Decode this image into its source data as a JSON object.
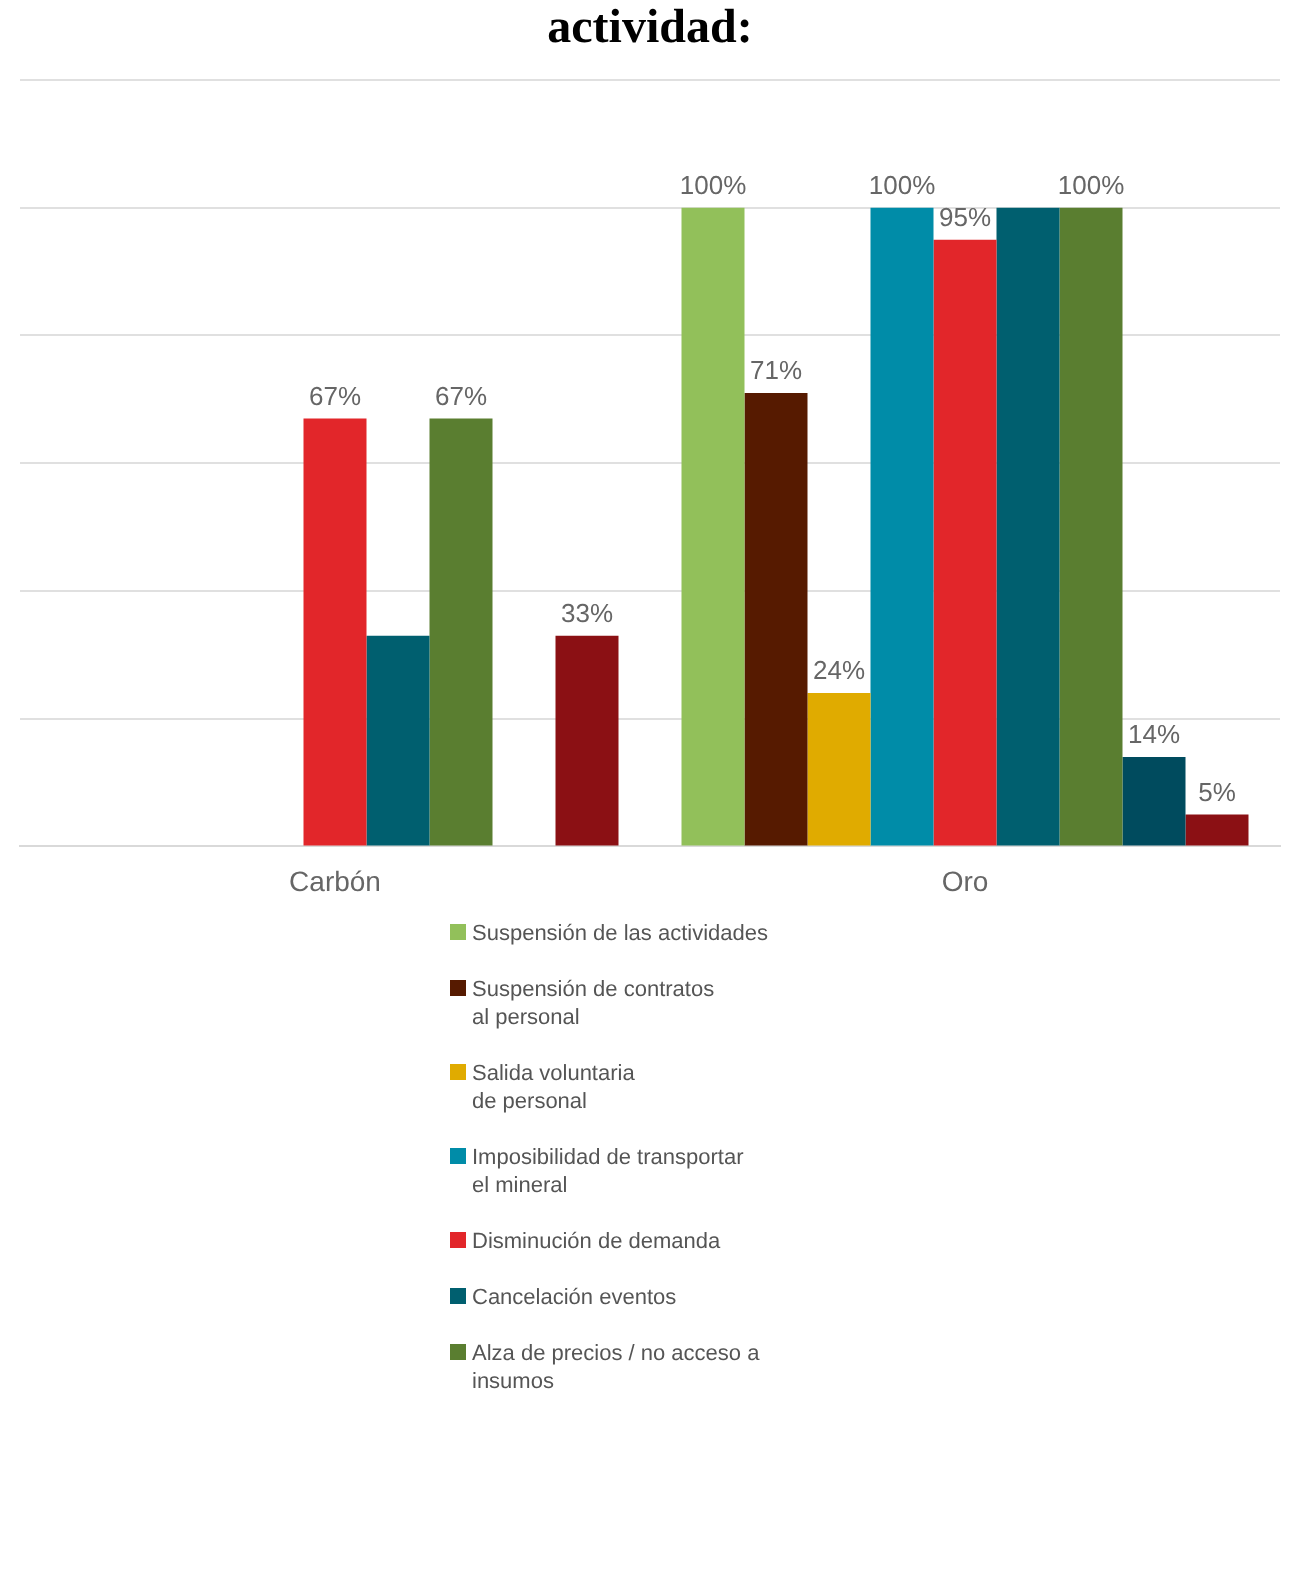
{
  "chart_data": {
    "type": "bar",
    "title": "actividad:",
    "categories": [
      "Carbón",
      "Oro"
    ],
    "series": [
      {
        "name": "Suspensión de las actividades",
        "color": "#92c05a",
        "values": [
          null,
          100
        ],
        "value_labels": [
          null,
          "100%"
        ]
      },
      {
        "name": "Suspensión de contratos\nal personal",
        "color": "#561a00",
        "values": [
          null,
          71
        ],
        "value_labels": [
          null,
          "71%"
        ]
      },
      {
        "name": "Salida voluntaria\nde personal",
        "color": "#e0ab00",
        "values": [
          null,
          24
        ],
        "value_labels": [
          null,
          "24%"
        ]
      },
      {
        "name": "Imposibilidad de transportar\nel mineral",
        "color": "#008ca8",
        "values": [
          null,
          100
        ],
        "value_labels": [
          null,
          "100%"
        ]
      },
      {
        "name": "Disminución de demanda",
        "color": "#e2262a",
        "values": [
          67,
          95
        ],
        "value_labels": [
          "67%",
          "95%"
        ]
      },
      {
        "name": "Cancelación eventos",
        "color": "#005f6f",
        "values": [
          33,
          100
        ],
        "value_labels": [
          null,
          null
        ]
      },
      {
        "name": "Alza de precios / no acceso a\ninsumos",
        "color": "#5a7e30",
        "values": [
          67,
          100
        ],
        "value_labels": [
          "67%",
          "100%"
        ]
      },
      {
        "color": "#004b5e",
        "values": [
          null,
          14
        ],
        "value_labels": [
          null,
          "14%"
        ]
      },
      {
        "color": "#8b1014",
        "values": [
          33,
          5
        ],
        "value_labels": [
          "33%",
          "5%"
        ]
      }
    ],
    "ylim": [
      0,
      120
    ],
    "yticks": [
      {
        "value": 0,
        "label": null
      },
      {
        "value": 20,
        "label": null
      },
      {
        "value": 40,
        "label": null
      },
      {
        "value": 60,
        "label": null
      },
      {
        "value": 80,
        "label": null
      },
      {
        "value": 100,
        "label": null
      },
      {
        "value": 120,
        "label": null
      }
    ],
    "tick_labels": "x",
    "grid": "y",
    "legend": "bottom"
  }
}
